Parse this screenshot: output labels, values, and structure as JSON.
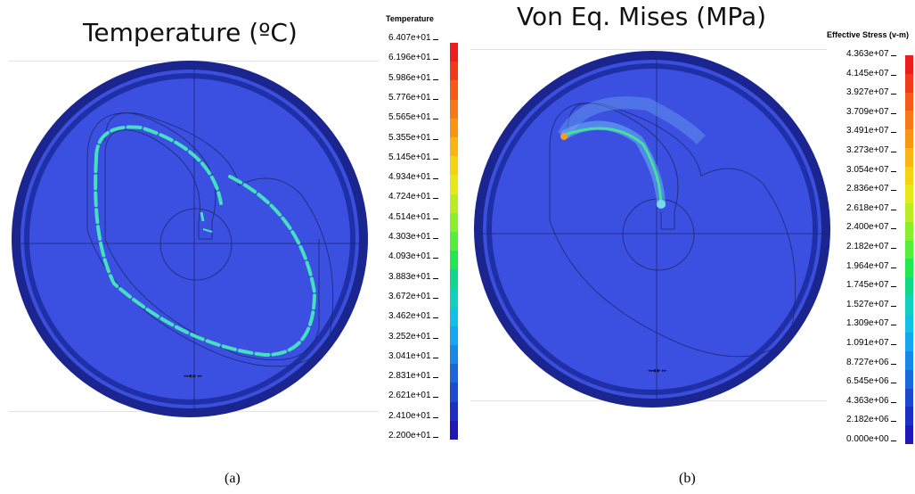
{
  "panel_a": {
    "title": "Temperature (ºC)",
    "legend_title": "Temperature",
    "ticks": [
      "6.407e+01",
      "6.196e+01",
      "5.986e+01",
      "5.776e+01",
      "5.565e+01",
      "5.355e+01",
      "5.145e+01",
      "4.934e+01",
      "4.724e+01",
      "4.514e+01",
      "4.303e+01",
      "4.093e+01",
      "3.883e+01",
      "3.672e+01",
      "3.462e+01",
      "3.252e+01",
      "3.041e+01",
      "2.831e+01",
      "2.621e+01",
      "2.410e+01",
      "2.200e+01"
    ],
    "caption": "(a)"
  },
  "panel_b": {
    "title": "Von Eq. Mises (MPa)",
    "legend_title": "Effective Stress (v-m)",
    "ticks": [
      "4.363e+07",
      "4.145e+07",
      "3.927e+07",
      "3.709e+07",
      "3.491e+07",
      "3.273e+07",
      "3.054e+07",
      "2.836e+07",
      "2.618e+07",
      "2.400e+07",
      "2.182e+07",
      "1.964e+07",
      "1.745e+07",
      "1.527e+07",
      "1.309e+07",
      "1.091e+07",
      "8.727e+06",
      "6.545e+06",
      "4.363e+06",
      "2.182e+06",
      "0.000e+00"
    ],
    "caption": "(b)"
  },
  "colors": {
    "disk": "#3b4fe0",
    "rim": "#1a2590",
    "hot_band": "#44e0c0",
    "colormap": [
      "#ee1c1c",
      "#f23a1a",
      "#f55a18",
      "#f77816",
      "#f89614",
      "#f9b512",
      "#f6d310",
      "#e6e818",
      "#b9ec22",
      "#88ef2c",
      "#55ee3a",
      "#22e850",
      "#10d88a",
      "#10d0c0",
      "#12c0e6",
      "#14a6f0",
      "#1688ea",
      "#1868dc",
      "#1a4ad0",
      "#1c2ec4",
      "#1e18b8"
    ]
  }
}
